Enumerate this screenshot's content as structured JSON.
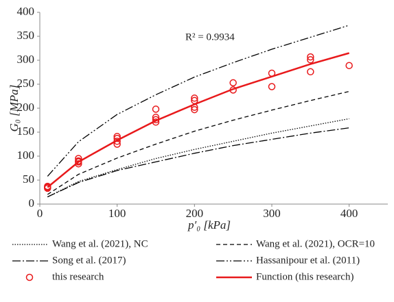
{
  "chart_data": {
    "type": "line",
    "x_label": "p′₀ [kPa]",
    "y_label": "G₀ [MPa]",
    "annotation": {
      "text": "R² = 0.9934",
      "color": "#e8191b"
    },
    "xlim": [
      0,
      450
    ],
    "xticks": [
      0,
      100,
      200,
      300,
      400
    ],
    "ylim": [
      0,
      400
    ],
    "yticks": [
      0,
      50,
      100,
      150,
      200,
      250,
      300,
      350,
      400
    ],
    "legend": "bottom",
    "series": [
      {
        "name": "Wang et al. (2021), NC",
        "color": "#000000",
        "line_style": "dotted",
        "x": [
          10,
          50,
          100,
          150,
          200,
          250,
          300,
          350,
          400
        ],
        "values": [
          15,
          47,
          72,
          95,
          114,
          131,
          148,
          163,
          178
        ]
      },
      {
        "name": "Wang et al. (2021), OCR=10",
        "color": "#000000",
        "line_style": "dashed",
        "x": [
          10,
          50,
          100,
          150,
          200,
          250,
          300,
          350,
          400
        ],
        "values": [
          20,
          62,
          96,
          125,
          152,
          175,
          196,
          216,
          235
        ]
      },
      {
        "name": "Song et al. (2017)",
        "color": "#000000",
        "line_style": "dashdot",
        "x": [
          10,
          50,
          100,
          150,
          200,
          250,
          300,
          350,
          400
        ],
        "values": [
          15,
          45,
          70,
          88,
          106,
          122,
          135,
          148,
          159
        ]
      },
      {
        "name": "Hassanipour et al. (2011)",
        "color": "#000000",
        "line_style": "dashdotdot",
        "x": [
          10,
          50,
          100,
          150,
          200,
          250,
          300,
          350,
          400
        ],
        "values": [
          58,
          130,
          187,
          228,
          265,
          295,
          323,
          348,
          373
        ]
      },
      {
        "name": "this research",
        "color": "#e8191b",
        "line_style": "none",
        "marker": "circle",
        "x": [
          10,
          10,
          10,
          50,
          50,
          50,
          50,
          100,
          100,
          100,
          100,
          150,
          150,
          150,
          150,
          200,
          200,
          200,
          200,
          250,
          250,
          300,
          300,
          350,
          350,
          350,
          400
        ],
        "values": [
          37,
          33,
          35,
          95,
          90,
          84,
          88,
          141,
          137,
          131,
          125,
          198,
          181,
          176,
          171,
          221,
          216,
          202,
          197,
          253,
          238,
          273,
          245,
          307,
          301,
          276,
          289
        ]
      },
      {
        "name": "Function (this research)",
        "color": "#e8191b",
        "line_style": "solid",
        "x": [
          10,
          50,
          100,
          150,
          200,
          250,
          300,
          350,
          400
        ],
        "values": [
          35,
          88,
          133,
          174,
          208,
          240,
          266,
          292,
          315
        ]
      }
    ]
  }
}
